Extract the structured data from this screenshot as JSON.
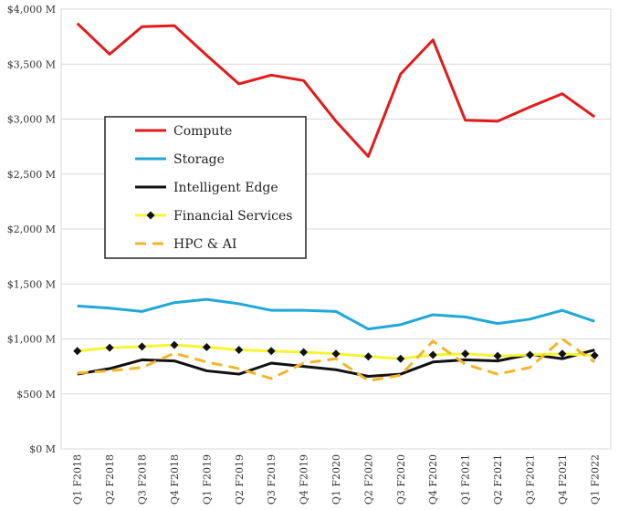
{
  "chart_data": {
    "type": "line",
    "categories": [
      "Q1 F2018",
      "Q2 F2018",
      "Q3 F2018",
      "Q4 F2018",
      "Q1 F2019",
      "Q2 F2019",
      "Q3 F2019",
      "Q4 F2019",
      "Q1 F2020",
      "Q2 F2020",
      "Q3 F2020",
      "Q4 F2020",
      "Q1 F2021",
      "Q2 F2021",
      "Q3 F2021",
      "Q4 F2021",
      "Q1 F2022"
    ],
    "y_tick_labels": [
      "$0 M",
      "$500 M",
      "$1,000 M",
      "$1,500 M",
      "$2,000 M",
      "$2,500 M",
      "$3,000 M",
      "$3,500 M",
      "$4,000 M"
    ],
    "ylim": [
      0,
      4000
    ],
    "y_tick_step": 500,
    "grid": true,
    "legend_position": "upper-left",
    "series": [
      {
        "name": "Compute",
        "color": "#e31a1c",
        "style": "solid",
        "values": [
          3870,
          3590,
          3840,
          3850,
          3580,
          3320,
          3400,
          3350,
          2980,
          2660,
          3410,
          3720,
          2990,
          2980,
          3110,
          3230,
          3020
        ]
      },
      {
        "name": "Storage",
        "color": "#1fa8d8",
        "style": "solid",
        "values": [
          1300,
          1280,
          1250,
          1330,
          1360,
          1320,
          1260,
          1260,
          1250,
          1090,
          1130,
          1220,
          1200,
          1140,
          1180,
          1260,
          1160
        ]
      },
      {
        "name": "Intelligent Edge",
        "color": "#111111",
        "style": "solid",
        "values": [
          680,
          730,
          810,
          800,
          710,
          680,
          780,
          750,
          720,
          660,
          680,
          790,
          810,
          800,
          860,
          820,
          900
        ]
      },
      {
        "name": "Financial Services",
        "color": "#f5f532",
        "style": "solid-marker",
        "values": [
          890,
          920,
          930,
          945,
          925,
          900,
          890,
          880,
          865,
          840,
          820,
          855,
          865,
          845,
          855,
          865,
          850
        ]
      },
      {
        "name": "HPC & AI",
        "color": "#f4b528",
        "style": "dashed",
        "values": [
          690,
          710,
          740,
          870,
          790,
          730,
          640,
          780,
          820,
          620,
          670,
          980,
          770,
          680,
          740,
          1000,
          790
        ]
      }
    ]
  }
}
